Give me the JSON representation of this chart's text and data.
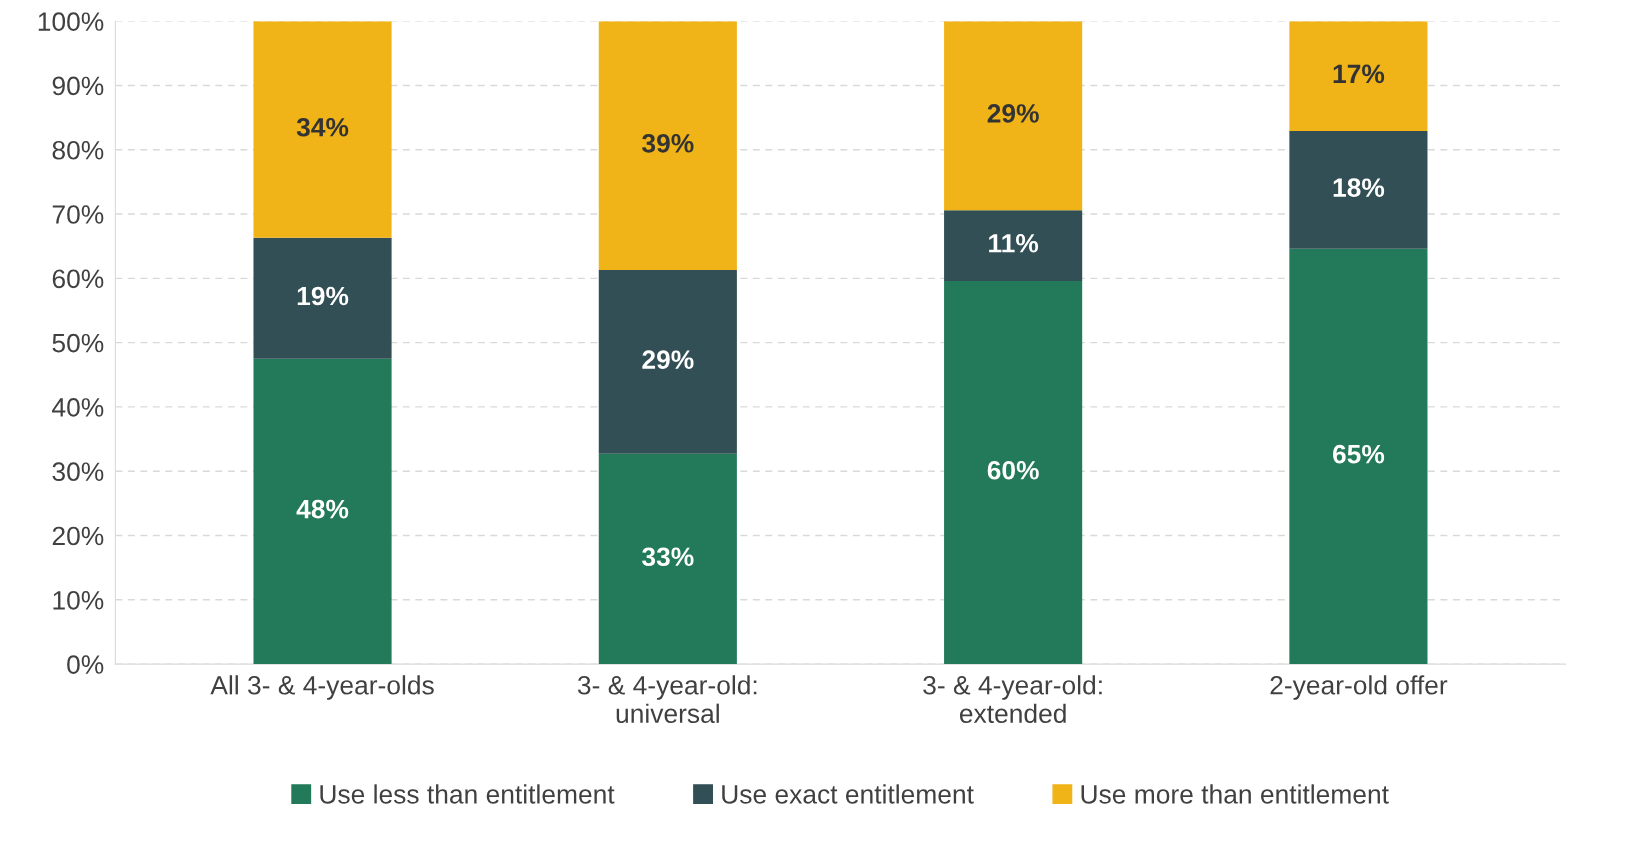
{
  "chart_data": {
    "type": "bar",
    "stacked": true,
    "categories": [
      "All 3- & 4-year-olds",
      "3- & 4-year-old:\nuniversal",
      "3- & 4-year-old:\nextended",
      "2-year-old offer"
    ],
    "series": [
      {
        "name": "Use less than entitlement",
        "color": "#237a5a",
        "values": [
          47.5,
          32.7,
          59.6,
          64.6
        ],
        "value_labels": [
          "48%",
          "33%",
          "60%",
          "65%"
        ]
      },
      {
        "name": "Use exact entitlement",
        "color": "#324f55",
        "values": [
          18.8,
          28.6,
          11.0,
          18.3
        ],
        "value_labels": [
          "19%",
          "29%",
          "11%",
          "18%"
        ]
      },
      {
        "name": "Use more than entitlement",
        "color": "#f0b419",
        "values": [
          33.7,
          38.7,
          29.4,
          17.1
        ],
        "value_labels": [
          "34%",
          "39%",
          "29%",
          "17%"
        ]
      }
    ],
    "ylim": [
      0,
      100
    ],
    "yticks": [
      {
        "value": 0,
        "label": "0%"
      },
      {
        "value": 10,
        "label": "10%"
      },
      {
        "value": 20,
        "label": "20%"
      },
      {
        "value": 30,
        "label": "30%"
      },
      {
        "value": 40,
        "label": "40%"
      },
      {
        "value": 50,
        "label": "50%"
      },
      {
        "value": 60,
        "label": "60%"
      },
      {
        "value": 70,
        "label": "70%"
      },
      {
        "value": 80,
        "label": "80%"
      },
      {
        "value": 90,
        "label": "90%"
      },
      {
        "value": 100,
        "label": "100%"
      }
    ],
    "grid": "y",
    "legend": "bottom"
  }
}
